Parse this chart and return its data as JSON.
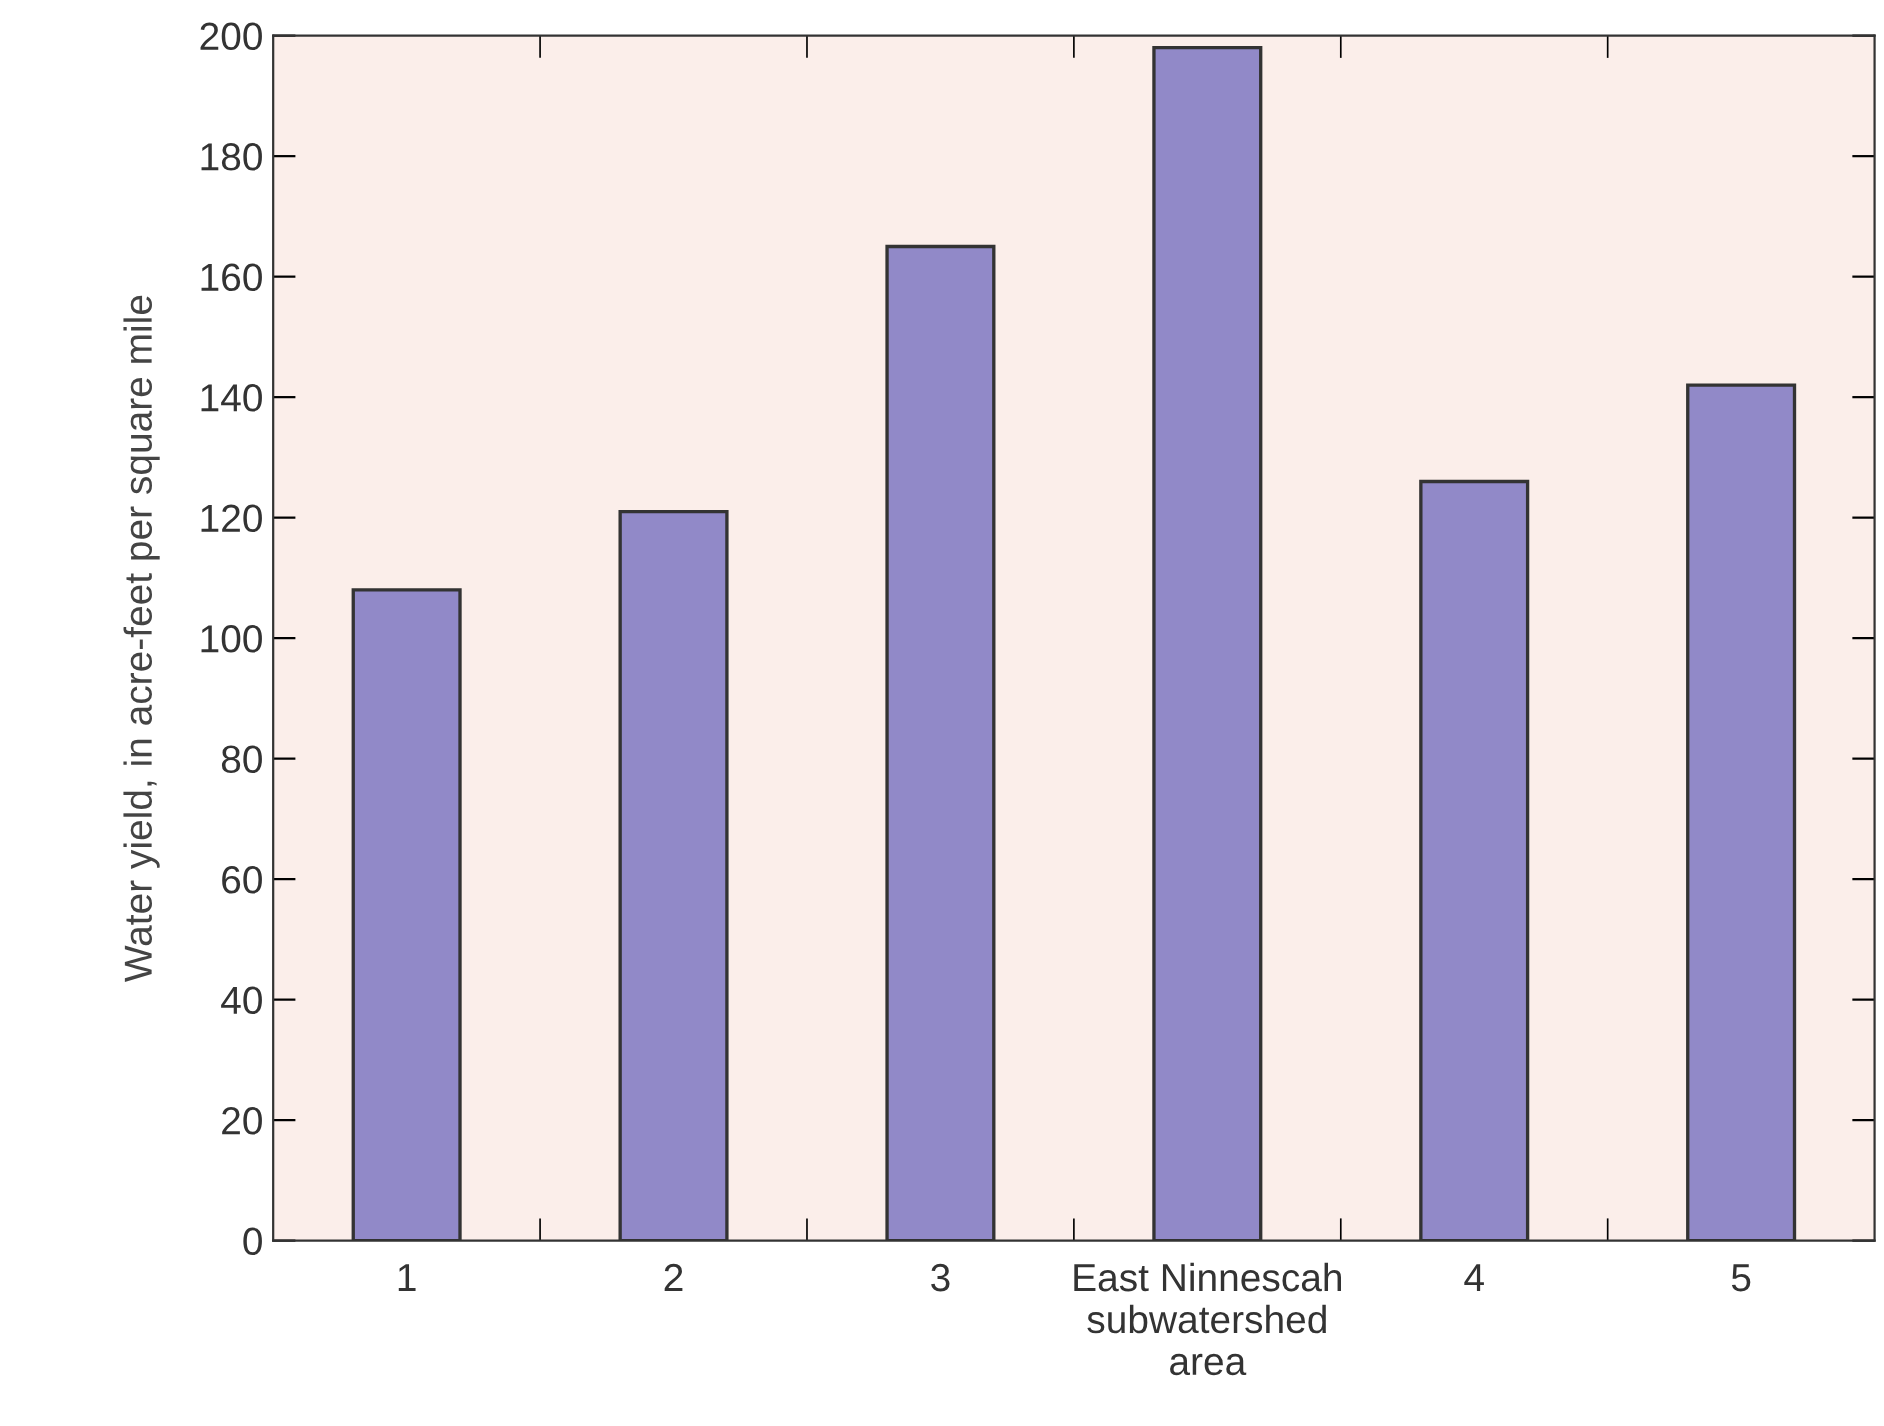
{
  "chart_data": {
    "type": "bar",
    "ylabel": "Water yield, in acre-feet per square mile",
    "categories": [
      "1",
      "2",
      "3",
      "East Ninnescah\nsubwatershed\narea",
      "4",
      "5"
    ],
    "values": [
      108,
      121,
      165,
      198,
      126,
      142
    ],
    "color": "#9189c8",
    "ylim": [
      0,
      200
    ],
    "yticks": [
      0,
      20,
      40,
      60,
      80,
      100,
      120,
      140,
      160,
      180,
      200
    ],
    "grid": false
  }
}
